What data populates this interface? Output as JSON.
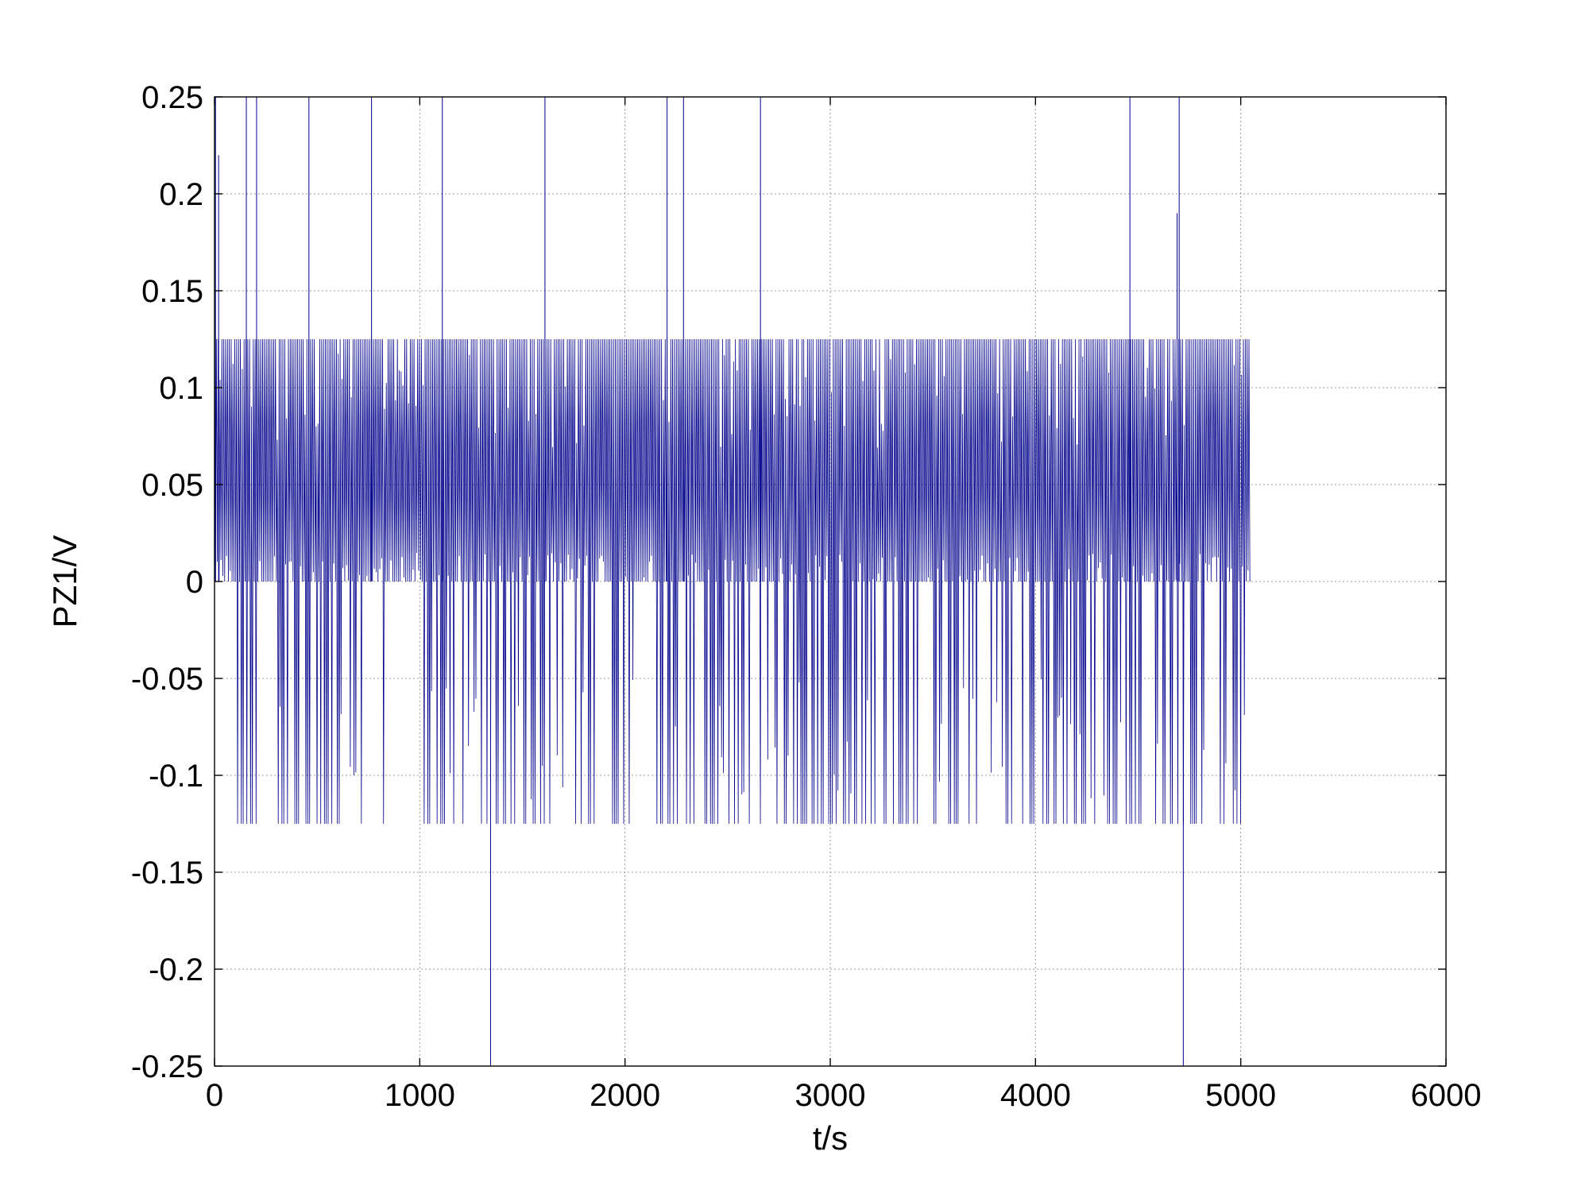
{
  "chart_data": {
    "type": "line",
    "title": "",
    "xlabel": "t/s",
    "ylabel": "PZ1/V",
    "xlim": [
      0,
      6000
    ],
    "ylim": [
      -0.25,
      0.25
    ],
    "xticks": [
      0,
      1000,
      2000,
      3000,
      4000,
      5000,
      6000
    ],
    "xtick_labels": [
      "0",
      "1000",
      "2000",
      "3000",
      "4000",
      "5000",
      "6000"
    ],
    "yticks": [
      0.25,
      0.2,
      0.15,
      0.1,
      0.05,
      0,
      -0.05,
      -0.1,
      -0.15,
      -0.2,
      -0.25
    ],
    "ytick_labels": [
      "0.25",
      "0.2",
      "0.15",
      "0.1",
      "0.05",
      "0",
      "-0.05",
      "-0.1",
      "-0.15",
      "-0.2",
      "-0.25"
    ],
    "grid": true,
    "series_color": "#00008b",
    "series": [
      {
        "description": "dense oscillating signal, mostly between 0 and 0.125 with frequent drops to -0.125, ending near t=5040",
        "x_range": [
          0,
          5040
        ],
        "upper_level": 0.125,
        "lower_level": -0.125,
        "approx_period_s": 18,
        "spikes_up": [
          {
            "t": 5,
            "y": 0.25
          },
          {
            "t": 20,
            "y": 0.22
          },
          {
            "t": 155,
            "y": 0.25
          },
          {
            "t": 205,
            "y": 0.25
          },
          {
            "t": 460,
            "y": 0.25
          },
          {
            "t": 765,
            "y": 0.25
          },
          {
            "t": 1110,
            "y": 0.25
          },
          {
            "t": 1610,
            "y": 0.25
          },
          {
            "t": 2205,
            "y": 0.25
          },
          {
            "t": 2285,
            "y": 0.25
          },
          {
            "t": 2660,
            "y": 0.25
          },
          {
            "t": 4460,
            "y": 0.25
          },
          {
            "t": 4690,
            "y": 0.19
          },
          {
            "t": 4700,
            "y": 0.25
          }
        ],
        "spikes_down": [
          {
            "t": 1345,
            "y": -0.25
          },
          {
            "t": 4720,
            "y": -0.25
          }
        ],
        "negative_ranges": [
          [
            95,
            725
          ],
          [
            810,
            820
          ],
          [
            1000,
            2070
          ],
          [
            2150,
            3420
          ],
          [
            3490,
            5020
          ]
        ]
      }
    ]
  }
}
